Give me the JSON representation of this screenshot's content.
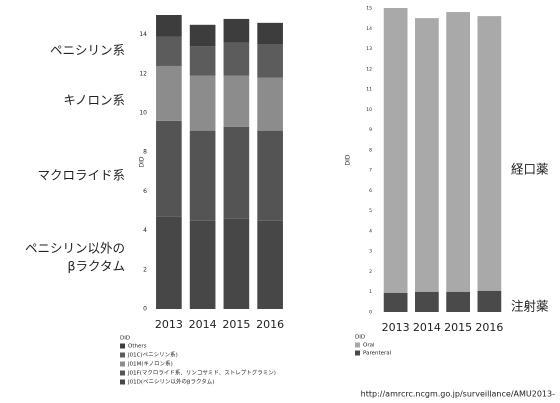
{
  "chart_data": [
    {
      "type": "stacked-bar",
      "y_label": "DID",
      "legend_title": "DID",
      "categories": [
        "2013",
        "2014",
        "2015",
        "2016"
      ],
      "series": [
        {
          "name": "J01D(ペニシリン以外のβラクタム)",
          "color": "#474747",
          "values": [
            4.7,
            4.5,
            4.6,
            4.5
          ]
        },
        {
          "name": "J01F(マクロライド系、リンコサミド、ストレプトグラミン)",
          "color": "#545454",
          "values": [
            4.9,
            4.6,
            4.7,
            4.6
          ]
        },
        {
          "name": "J01M(キノロン系)",
          "color": "#8c8c8c",
          "values": [
            2.8,
            2.8,
            2.6,
            2.7
          ]
        },
        {
          "name": "J01C(ペニシリン系)",
          "color": "#5c5c5c",
          "values": [
            1.5,
            1.5,
            1.7,
            1.7
          ]
        },
        {
          "name": "Others",
          "color": "#3d3d3d",
          "values": [
            1.1,
            1.1,
            1.2,
            1.1
          ]
        }
      ],
      "ylim": [
        0,
        15
      ],
      "yticks": [
        0,
        2,
        4,
        6,
        8,
        10,
        12,
        14
      ],
      "annotations": [
        [
          "ペニシリン系"
        ],
        [
          "キノロン系"
        ],
        [
          "マクロライド系"
        ],
        [
          "ペニシリン以外の",
          "βラクタム"
        ]
      ]
    },
    {
      "type": "stacked-bar",
      "y_label": "DID",
      "legend_title": "DID",
      "categories": [
        "2013",
        "2014",
        "2015",
        "2016"
      ],
      "series": [
        {
          "name": "Parenteral",
          "color": "#4a4a4a",
          "values": [
            0.95,
            1.0,
            1.0,
            1.05
          ]
        },
        {
          "name": "Oral",
          "color": "#a9a9a9",
          "values": [
            14.05,
            13.5,
            13.8,
            13.55
          ]
        }
      ],
      "ylim": [
        0,
        15
      ],
      "yticks": [
        0,
        1,
        2,
        3,
        4,
        5,
        6,
        7,
        8,
        9,
        10,
        11,
        12,
        13,
        14,
        15
      ],
      "annotations": [
        [
          "経口薬"
        ],
        [
          "注射薬"
        ]
      ]
    }
  ],
  "source": "http://amrcrc.ncgm.go.jp/surveillance/AMU2013-"
}
